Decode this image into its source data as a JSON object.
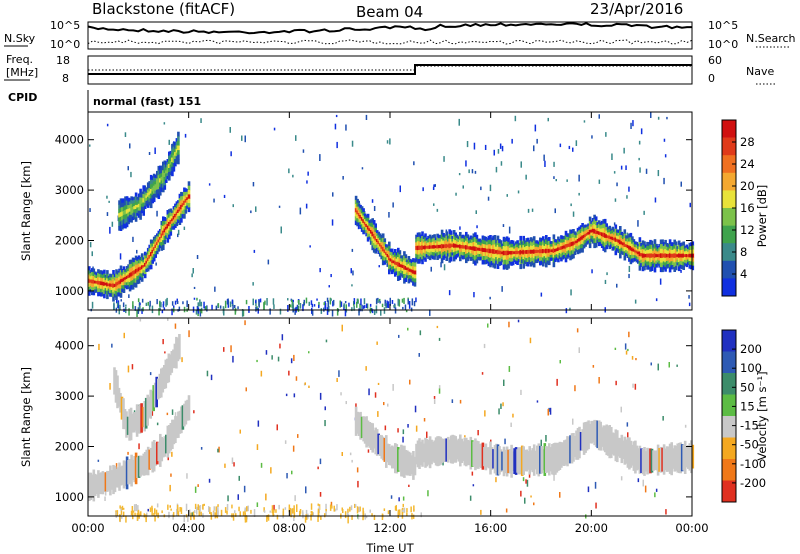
{
  "header": {
    "station": "Blackstone (fitACF)",
    "beam": "Beam 04",
    "date": "23/Apr/2016"
  },
  "left_labels": {
    "nsky": "N.Sky",
    "freq_line1": "Freq.",
    "freq_line2": "[MHz]",
    "cpid": "CPID"
  },
  "right_labels": {
    "nsearch": "N.Search",
    "nave": "Nave"
  },
  "mode_text": "normal (fast) 151",
  "noise_panel": {
    "left_ticks": [
      "10^5",
      "10^0"
    ],
    "right_ticks": [
      "10^5",
      "10^0"
    ]
  },
  "freq_panel": {
    "left_ticks": [
      "18",
      "8"
    ],
    "right_ticks": [
      "60",
      "0"
    ]
  },
  "colors": {
    "noise_line": "#000000",
    "frame": "#000000"
  },
  "chart_data": [
    {
      "type": "heatmap",
      "panel": "power",
      "ylabel": "Slant Range [km]",
      "xlabel": "Time UT",
      "x_ticks": [
        "00:00",
        "04:00",
        "08:00",
        "12:00",
        "16:00",
        "20:00",
        "00:00"
      ],
      "y_ticks": [
        1000,
        2000,
        3000,
        4000
      ],
      "ylim": [
        620,
        4550
      ],
      "xlim_hours": [
        0,
        24
      ],
      "colorbar": {
        "label": "Power [dB]",
        "ticks": [
          4,
          8,
          12,
          16,
          20,
          24,
          28
        ],
        "range": [
          0,
          32
        ],
        "colors": [
          "#1030e0",
          "#2050b0",
          "#3a8a8a",
          "#3fa34d",
          "#7cc24a",
          "#e8e23a",
          "#f4a830",
          "#f07020",
          "#e03a1a",
          "#d01010"
        ]
      },
      "traces": [
        {
          "name": "band1",
          "t": [
            0.0,
            1.0,
            2.2,
            3.0,
            4.0
          ],
          "r": [
            1200,
            1100,
            1500,
            2200,
            2900
          ]
        },
        {
          "name": "band2",
          "t": [
            1.2,
            2.0,
            3.0,
            3.6
          ],
          "r": [
            2500,
            2700,
            3300,
            3900
          ]
        },
        {
          "name": "band3",
          "t": [
            10.6,
            12.0,
            13.0
          ],
          "r": [
            2600,
            1600,
            1350
          ]
        },
        {
          "name": "band4",
          "t": [
            13.0,
            14.5,
            16.5,
            18.5,
            19.3,
            20.0,
            21.0,
            22.0,
            24.0
          ],
          "r": [
            1850,
            1900,
            1750,
            1800,
            1950,
            2200,
            2000,
            1700,
            1700
          ]
        }
      ]
    },
    {
      "type": "heatmap",
      "panel": "velocity",
      "ylabel": "Slant Range [km]",
      "xlabel": "Time UT",
      "x_ticks": [
        "00:00",
        "04:00",
        "08:00",
        "12:00",
        "16:00",
        "20:00",
        "00:00"
      ],
      "y_ticks": [
        1000,
        2000,
        3000,
        4000
      ],
      "ylim": [
        620,
        4550
      ],
      "xlim_hours": [
        0,
        24
      ],
      "colorbar": {
        "label": "Velocity [m s⁻¹]",
        "ticks": [
          200,
          100,
          50,
          15,
          -15,
          -50,
          -100,
          -200
        ],
        "colors": [
          "#2030c0",
          "#2e5ab4",
          "#3c8c6a",
          "#5cbc44",
          "#c8c8c8",
          "#f4a820",
          "#f07818",
          "#e03020"
        ]
      },
      "traces": [
        {
          "name": "band1",
          "t": [
            0.0,
            1.0,
            2.2,
            3.0,
            4.0
          ],
          "r": [
            1200,
            1350,
            1650,
            2000,
            2800
          ]
        },
        {
          "name": "band2",
          "t": [
            1.0,
            1.5,
            2.2,
            3.0,
            3.6
          ],
          "r": [
            3300,
            2400,
            2600,
            3400,
            4000
          ]
        },
        {
          "name": "band3",
          "t": [
            10.6,
            12.0,
            13.0
          ],
          "r": [
            2500,
            1800,
            1600
          ]
        },
        {
          "name": "band4",
          "t": [
            13.0,
            14.5,
            16.5,
            18.5,
            19.3,
            20.0,
            21.0,
            22.0,
            24.0
          ],
          "r": [
            1850,
            1950,
            1700,
            1750,
            2000,
            2300,
            2000,
            1700,
            1800
          ]
        }
      ]
    }
  ]
}
